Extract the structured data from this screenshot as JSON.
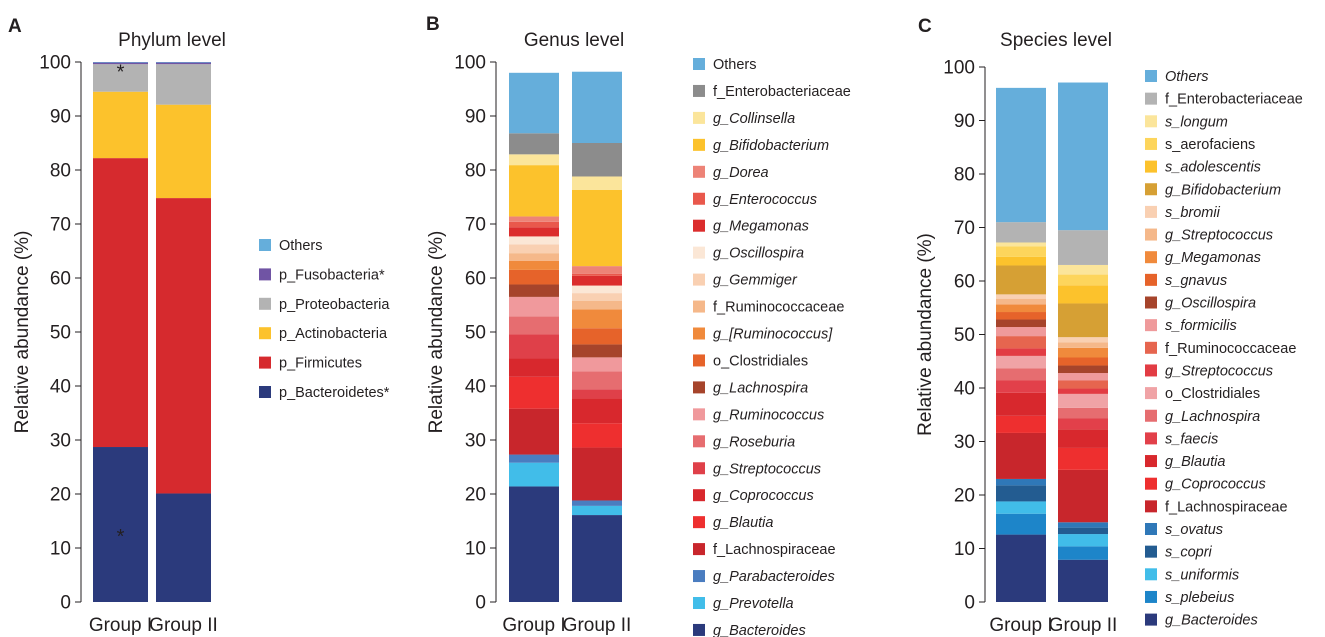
{
  "chart_data": [
    {
      "panel_letter": "A",
      "type": "bar",
      "stacked": true,
      "title": "Phylum level",
      "ylabel": "Relative abundance (%)",
      "ylim": [
        0,
        100
      ],
      "yticks": [
        "0",
        "10",
        "20",
        "30",
        "40",
        "50",
        "60",
        "70",
        "80",
        "90",
        "100"
      ],
      "categories": [
        "Group I",
        "Group II"
      ],
      "legend_placement": "right",
      "legend_order": "top-to-bottom",
      "series": [
        {
          "name": "p_Bacteroidetes*",
          "color": "#2b3a7c",
          "italic": false,
          "values": [
            28.7,
            20.1
          ]
        },
        {
          "name": "p_Firmicutes",
          "color": "#d62a2e",
          "italic": false,
          "values": [
            53.5,
            54.7
          ]
        },
        {
          "name": "p_Actinobacteria",
          "color": "#fcc22c",
          "italic": false,
          "values": [
            12.3,
            17.3
          ]
        },
        {
          "name": "p_Proteobacteria",
          "color": "#b3b3b3",
          "italic": false,
          "values": [
            5.1,
            7.5
          ]
        },
        {
          "name": "p_Fusobacteria*",
          "color": "#7054a4",
          "italic": false,
          "values": [
            0.3,
            0.3
          ]
        },
        {
          "name": "Others",
          "color": "#65aedb",
          "italic": false,
          "values": [
            0.1,
            0.1
          ]
        }
      ],
      "annotations": [
        {
          "text": "*",
          "category": "Group I",
          "y": 13
        },
        {
          "text": "*",
          "category": "Group I",
          "y": 99
        }
      ]
    },
    {
      "panel_letter": "B",
      "type": "bar",
      "stacked": true,
      "title": "Genus level",
      "ylabel": "Relative abundance (%)",
      "ylim": [
        0,
        100
      ],
      "yticks": [
        "0",
        "10",
        "20",
        "30",
        "40",
        "50",
        "60",
        "70",
        "80",
        "90",
        "100"
      ],
      "categories": [
        "Group I",
        "Group II"
      ],
      "legend_placement": "right",
      "legend_order": "top-to-bottom",
      "series": [
        {
          "name": "g_Bacteroides",
          "color": "#2b3a7c",
          "italic": true,
          "values": [
            21.4,
            16.1
          ]
        },
        {
          "name": "g_Prevotella",
          "color": "#41bde9",
          "italic": true,
          "values": [
            4.4,
            1.7
          ]
        },
        {
          "name": "g_Parabacteroides",
          "color": "#4a7dc0",
          "italic": true,
          "values": [
            1.5,
            1.0
          ]
        },
        {
          "name": "f_Lachnospiraceae",
          "color": "#c8262c",
          "italic": false,
          "values": [
            8.5,
            9.8
          ]
        },
        {
          "name": "g_Blautia",
          "color": "#ee2f2f",
          "italic": true,
          "values": [
            5.9,
            4.5
          ]
        },
        {
          "name": "g_Coprococcus",
          "color": "#d8282d",
          "italic": true,
          "values": [
            3.4,
            4.6
          ]
        },
        {
          "name": "g_Streptococcus",
          "color": "#df4049",
          "italic": true,
          "values": [
            4.5,
            1.7
          ]
        },
        {
          "name": "g_Roseburia",
          "color": "#e66d70",
          "italic": true,
          "values": [
            3.3,
            3.3
          ]
        },
        {
          "name": "g_Ruminococcus",
          "color": "#f0999c",
          "italic": true,
          "values": [
            3.6,
            2.6
          ]
        },
        {
          "name": "g_Lachnospira",
          "color": "#a6442b",
          "italic": true,
          "values": [
            2.3,
            2.4
          ]
        },
        {
          "name": "o_Clostridiales",
          "color": "#e6632a",
          "italic": false,
          "values": [
            2.7,
            3.0
          ]
        },
        {
          "name": "g_[Ruminococcus]",
          "color": "#f08a3c",
          "italic": true,
          "values": [
            1.7,
            3.5
          ]
        },
        {
          "name": "f_Ruminococcaceae",
          "color": "#f5b88a",
          "italic": false,
          "values": [
            1.4,
            1.6
          ]
        },
        {
          "name": "g_Gemmiger",
          "color": "#f9d0b2",
          "italic": true,
          "values": [
            1.6,
            1.4
          ]
        },
        {
          "name": "g_Oscillospira",
          "color": "#fbe7d6",
          "italic": true,
          "values": [
            1.5,
            1.4
          ]
        },
        {
          "name": "g_Megamonas",
          "color": "#db2d2d",
          "italic": true,
          "values": [
            1.7,
            1.8
          ]
        },
        {
          "name": "g_Enterococcus",
          "color": "#e9584c",
          "italic": true,
          "values": [
            1.0,
            0.4
          ]
        },
        {
          "name": "g_Dorea",
          "color": "#ed8377",
          "italic": true,
          "values": [
            1.0,
            1.4
          ]
        },
        {
          "name": "g_Bifidobacterium",
          "color": "#fcc22c",
          "italic": true,
          "values": [
            9.5,
            14.1
          ]
        },
        {
          "name": "g_Collinsella",
          "color": "#fbe59b",
          "italic": true,
          "values": [
            2.0,
            2.5
          ]
        },
        {
          "name": "f_Enterobacteriaceae",
          "color": "#8c8c8c",
          "italic": false,
          "values": [
            3.9,
            6.2
          ]
        },
        {
          "name": "Others",
          "color": "#65aedb",
          "italic": false,
          "values": [
            11.2,
            13.2
          ]
        }
      ]
    },
    {
      "panel_letter": "C",
      "type": "bar",
      "stacked": true,
      "title": "Species level",
      "ylabel": "Relative abundance (%)",
      "ylim": [
        0,
        100
      ],
      "yticks": [
        "0",
        "10",
        "20",
        "30",
        "40",
        "50",
        "60",
        "70",
        "80",
        "90",
        "100"
      ],
      "categories": [
        "Group I",
        "Group II"
      ],
      "legend_placement": "right",
      "legend_order": "top-to-bottom",
      "series": [
        {
          "name": "g_Bacteroides",
          "color": "#2b3a7c",
          "italic": true,
          "values": [
            12.6,
            7.9
          ]
        },
        {
          "name": "s_plebeius",
          "color": "#1d85c9",
          "italic": true,
          "values": [
            3.9,
            2.5
          ]
        },
        {
          "name": "s_uniformis",
          "color": "#41bde9",
          "italic": true,
          "values": [
            2.3,
            2.3
          ]
        },
        {
          "name": "s_copri",
          "color": "#235c91",
          "italic": true,
          "values": [
            3.0,
            1.2
          ]
        },
        {
          "name": "s_ovatus",
          "color": "#2f78b8",
          "italic": true,
          "values": [
            1.2,
            1.0
          ]
        },
        {
          "name": "f_Lachnospiraceae",
          "color": "#c8262c",
          "italic": false,
          "values": [
            8.6,
            9.8
          ]
        },
        {
          "name": "g_Coprococcus",
          "color": "#ee2f2f",
          "italic": true,
          "values": [
            3.2,
            4.1
          ]
        },
        {
          "name": "g_Blautia",
          "color": "#d8282d",
          "italic": true,
          "values": [
            4.3,
            3.5
          ]
        },
        {
          "name": "s_faecis",
          "color": "#e2404a",
          "italic": true,
          "values": [
            2.3,
            2.0
          ]
        },
        {
          "name": "g_Lachnospira",
          "color": "#e66d70",
          "italic": true,
          "values": [
            2.3,
            2.0
          ]
        },
        {
          "name": "o_Clostridiales",
          "color": "#f0a3a6",
          "italic": false,
          "values": [
            2.3,
            2.6
          ]
        },
        {
          "name": "g_Streptococcus",
          "color": "#e23c44",
          "italic": true,
          "values": [
            1.4,
            1.0
          ]
        },
        {
          "name": "f_Ruminococcaceae",
          "color": "#e6654f",
          "italic": false,
          "values": [
            2.3,
            1.5
          ]
        },
        {
          "name": "s_formicilis",
          "color": "#ef9a9b",
          "italic": true,
          "values": [
            1.7,
            1.4
          ]
        },
        {
          "name": "g_Oscillospira",
          "color": "#a6442b",
          "italic": true,
          "values": [
            1.4,
            1.4
          ]
        },
        {
          "name": "s_gnavus",
          "color": "#e6632a",
          "italic": true,
          "values": [
            1.4,
            1.5
          ]
        },
        {
          "name": "g_Megamonas",
          "color": "#f08a3c",
          "italic": true,
          "values": [
            1.4,
            1.8
          ]
        },
        {
          "name": "g_Streptococcus",
          "color": "#f5b88a",
          "italic": true,
          "values": [
            1.1,
            1.0
          ]
        },
        {
          "name": "s_bromii",
          "color": "#f9d0b2",
          "italic": true,
          "values": [
            0.8,
            1.0
          ]
        },
        {
          "name": "g_Bifidobacterium",
          "color": "#d6a034",
          "italic": true,
          "values": [
            5.4,
            6.3
          ]
        },
        {
          "name": "s_adolescentis",
          "color": "#fcc22c",
          "italic": true,
          "values": [
            1.6,
            3.4
          ]
        },
        {
          "name": "s_aerofaciens",
          "color": "#fdd55c",
          "italic": false,
          "values": [
            2.0,
            2.0
          ]
        },
        {
          "name": "s_longum",
          "color": "#fbe59b",
          "italic": true,
          "values": [
            0.7,
            1.8
          ]
        },
        {
          "name": "f_Enterobacteriaceae",
          "color": "#b3b3b3",
          "italic": false,
          "values": [
            3.8,
            6.5
          ]
        },
        {
          "name": "Others",
          "color": "#65aedb",
          "italic": true,
          "values": [
            25.1,
            27.6
          ]
        }
      ]
    }
  ]
}
